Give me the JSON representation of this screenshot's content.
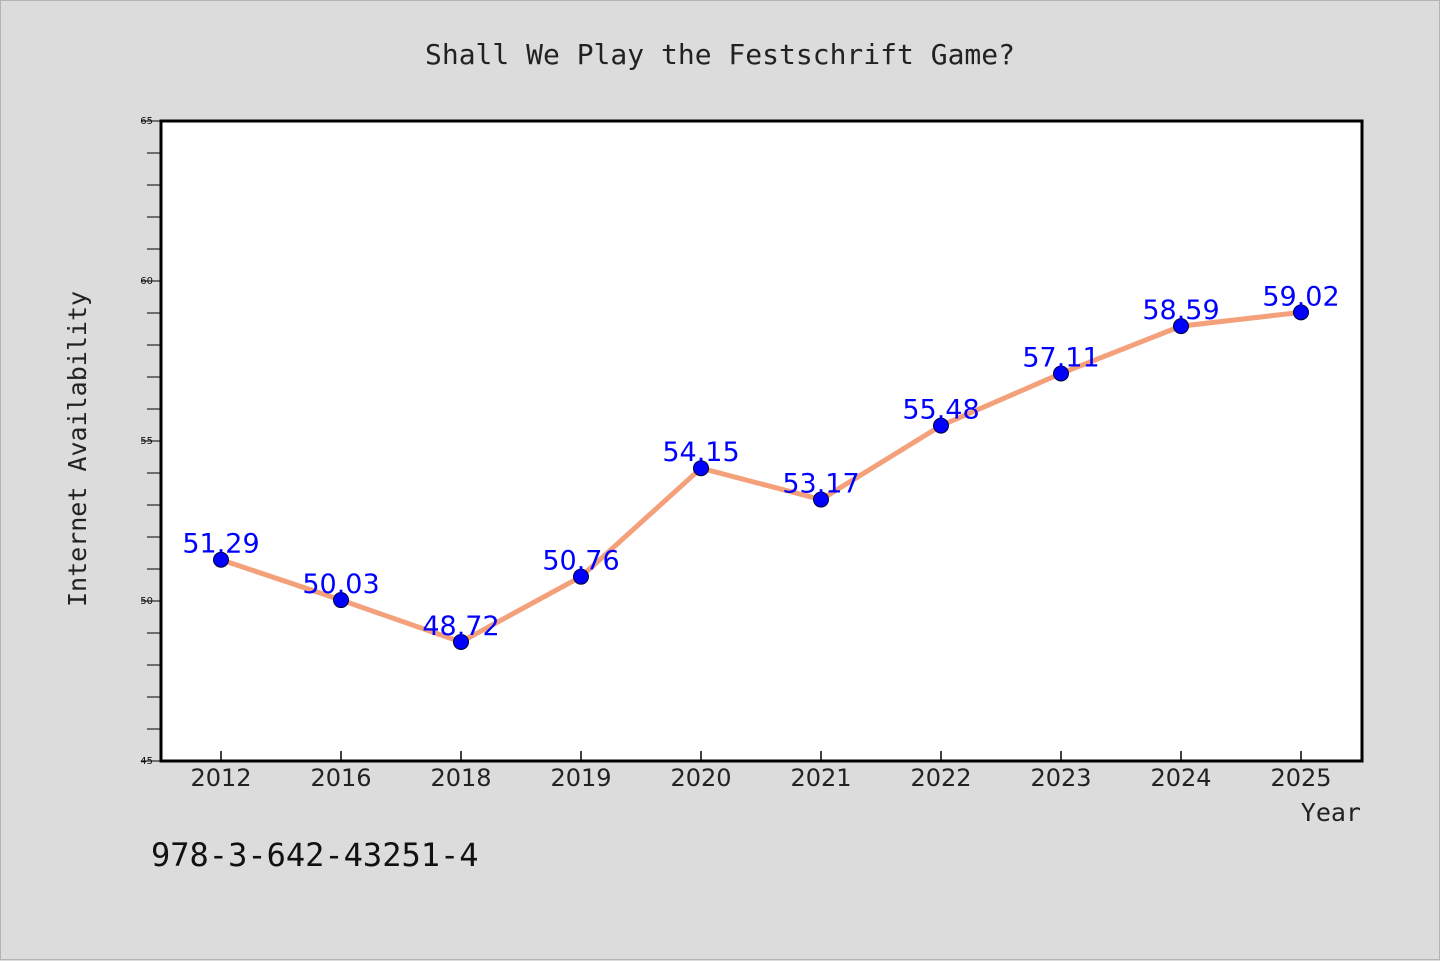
{
  "chart_data": {
    "type": "line",
    "title": "Shall We Play the Festschrift Game?",
    "xlabel": "Year",
    "ylabel": "Internet Availability",
    "categories": [
      "2012",
      "2016",
      "2018",
      "2019",
      "2020",
      "2021",
      "2022",
      "2023",
      "2024",
      "2025"
    ],
    "series": [
      {
        "values": [
          51.29,
          50.03,
          48.72,
          50.76,
          54.15,
          53.17,
          55.48,
          57.11,
          58.59,
          59.02
        ],
        "labels": [
          "51.29",
          "50.03",
          "48.72",
          "50.76",
          "54.15",
          "53.17",
          "55.48",
          "57.11",
          "58.59",
          "59.02"
        ]
      }
    ],
    "ylim": [
      45,
      65
    ],
    "yticks": [
      "45",
      "50",
      "55",
      "60",
      "65"
    ],
    "grid": false,
    "legend": "none",
    "colors": {
      "line": "#f4a07a",
      "marker": "#0000ff",
      "label": "#0000ff",
      "background": "#dcdcdc",
      "plot_area": "#ffffff"
    }
  },
  "footer_text": "978-3-642-43251-4"
}
